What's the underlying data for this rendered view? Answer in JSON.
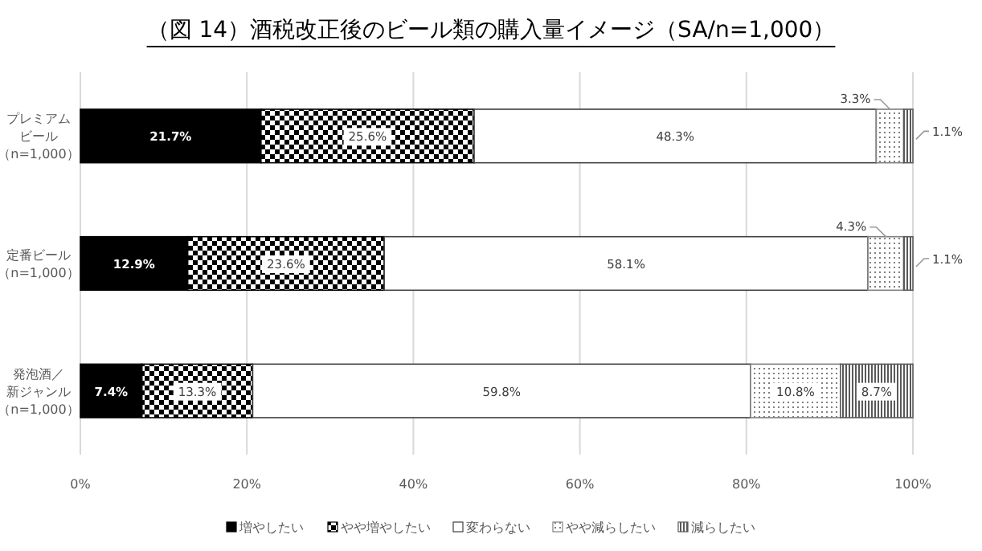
{
  "chart_data": {
    "type": "bar",
    "orientation": "horizontal",
    "stacked": true,
    "title": "（図 14）酒税改正後のビール類の購入量イメージ（SA/n=1,000）",
    "categories": [
      "プレミアムビール（n=1,000）",
      "定番ビール（n=1,000）",
      "発泡酒／新ジャンル（n=1,000）"
    ],
    "series": [
      {
        "name": "増やしたい",
        "color": "#000000",
        "values": [
          21.7,
          12.9,
          7.4
        ],
        "value_labels": [
          "21.7%",
          "12.9%",
          "7.4%"
        ]
      },
      {
        "name": "やや増やしたい",
        "color": "#000000",
        "values": [
          25.6,
          23.6,
          13.3
        ],
        "value_labels": [
          "25.6%",
          "23.6%",
          "13.3%"
        ]
      },
      {
        "name": "変わらない",
        "color": "#ffffff",
        "values": [
          48.3,
          58.1,
          59.8
        ],
        "value_labels": [
          "48.3%",
          "58.1%",
          "59.8%"
        ]
      },
      {
        "name": "やや減らしたい",
        "color": "#808080",
        "values": [
          3.3,
          4.3,
          10.8
        ],
        "value_labels": [
          "3.3%",
          "4.3%",
          "10.8%"
        ]
      },
      {
        "name": "減らしたい",
        "color": "#595959",
        "values": [
          1.1,
          1.1,
          8.7
        ],
        "value_labels": [
          "1.1%",
          "1.1%",
          "8.7%"
        ]
      }
    ],
    "xlim": [
      0,
      100
    ],
    "xticks": [
      {
        "value": 0,
        "label": "0%"
      },
      {
        "value": 20,
        "label": "20%"
      },
      {
        "value": 40,
        "label": "40%"
      },
      {
        "value": 60,
        "label": "60%"
      },
      {
        "value": 80,
        "label": "80%"
      },
      {
        "value": 100,
        "label": "100%"
      }
    ],
    "grid": "x",
    "legend": "bottom"
  }
}
